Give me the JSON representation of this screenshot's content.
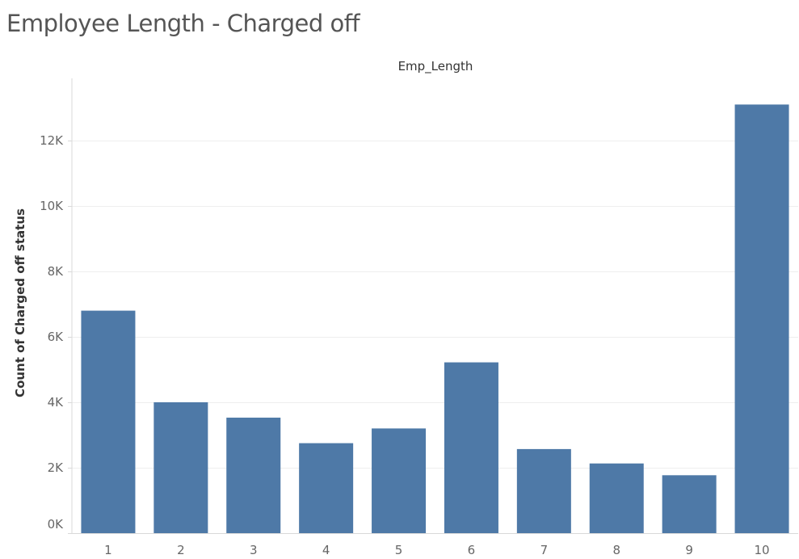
{
  "page_title": "Employee Length - Charged off",
  "colors": {
    "bar": "#4e79a7",
    "gridline": "#eeeeee",
    "axis_line": "#d9d9d9",
    "title_text": "#555555",
    "tick_text": "#666666",
    "label_text": "#333333"
  },
  "chart_data": {
    "type": "bar",
    "title": "Employee Length - Charged off",
    "column_header": "Emp_Length",
    "xlabel": "",
    "ylabel": "Count of Charged off status",
    "categories": [
      "1",
      "2",
      "3",
      "4",
      "5",
      "6",
      "7",
      "8",
      "9",
      "10"
    ],
    "values": [
      6800,
      4000,
      3530,
      2750,
      3200,
      5220,
      2570,
      2130,
      1770,
      13100
    ],
    "ylim": [
      0,
      13900
    ],
    "yticks": [
      0,
      2000,
      4000,
      6000,
      8000,
      10000,
      12000
    ],
    "ytick_labels": [
      "0K",
      "2K",
      "4K",
      "6K",
      "8K",
      "10K",
      "12K"
    ],
    "grid": true,
    "legend": "none"
  }
}
